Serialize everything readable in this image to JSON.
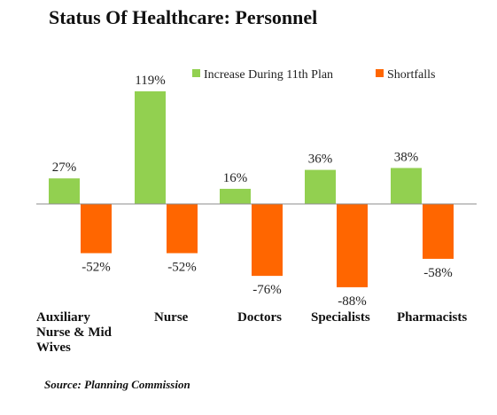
{
  "chart_data": {
    "type": "bar",
    "title": "Status Of Healthcare: Personnel",
    "categories": [
      [
        "Auxiliary",
        "Nurse & Mid",
        "Wives"
      ],
      [
        "Nurse"
      ],
      [
        "Doctors"
      ],
      [
        "Specialists"
      ],
      [
        "Pharmacists"
      ]
    ],
    "series": [
      {
        "name": "Increase During 11th Plan",
        "color": "#92D050",
        "values": [
          27,
          119,
          16,
          36,
          38
        ],
        "labels": [
          "27%",
          "119%",
          "16%",
          "36%",
          "38%"
        ]
      },
      {
        "name": "Shortfalls",
        "color": "#FF6600",
        "values": [
          -52,
          -52,
          -76,
          -88,
          -58
        ],
        "labels": [
          "-52%",
          "-52%",
          "-76%",
          "-88%",
          "-58%"
        ]
      }
    ],
    "ylim": [
      -88,
      119
    ],
    "grid": false,
    "legend_position": "top-right",
    "source": "Source: Planning Commission"
  }
}
